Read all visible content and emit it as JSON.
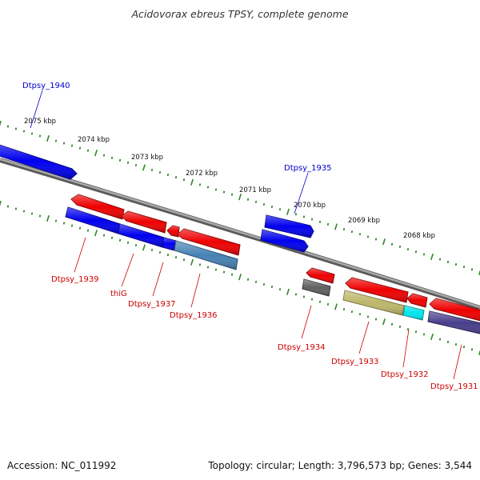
{
  "title": "Acidovorax ebreus TPSY, complete genome",
  "footer": {
    "accession": "Accession: NC_011992",
    "summary": "Topology: circular; Length: 3,796,573 bp; Genes: 3,544"
  },
  "colors": {
    "tick": "#2e8b22",
    "backbone": "#8c8c8c",
    "forward_label": "#0000cc",
    "reverse_label": "#cc0000"
  },
  "scale_labels": [
    "2075 kbp",
    "2074 kbp",
    "2073 kbp",
    "2072 kbp",
    "2071 kbp",
    "2070 kbp",
    "2069 kbp",
    "2068 kbp"
  ],
  "genes": [
    {
      "name": "Dtpsy_1940",
      "strand": "+",
      "color": "#0000ee"
    },
    {
      "name": "Dtpsy_1935",
      "strand": "+",
      "color": "#0000ee"
    },
    {
      "name": "Dtpsy_1939",
      "strand": "-",
      "color": "#0000ee"
    },
    {
      "name": "thiG",
      "strand": "-",
      "color": "#0000ee"
    },
    {
      "name": "Dtpsy_1937",
      "strand": "-",
      "color": "#0000ee"
    },
    {
      "name": "Dtpsy_1936",
      "strand": "-",
      "color": "#4682b4"
    },
    {
      "name": "Dtpsy_1934",
      "strand": "-",
      "color": "#606060"
    },
    {
      "name": "Dtpsy_1933",
      "strand": "-",
      "color": "#bdb76b"
    },
    {
      "name": "Dtpsy_1932",
      "strand": "-",
      "color": "#00e5ee"
    },
    {
      "name": "Dtpsy_1931",
      "strand": "-",
      "color": "#483d8b"
    }
  ]
}
